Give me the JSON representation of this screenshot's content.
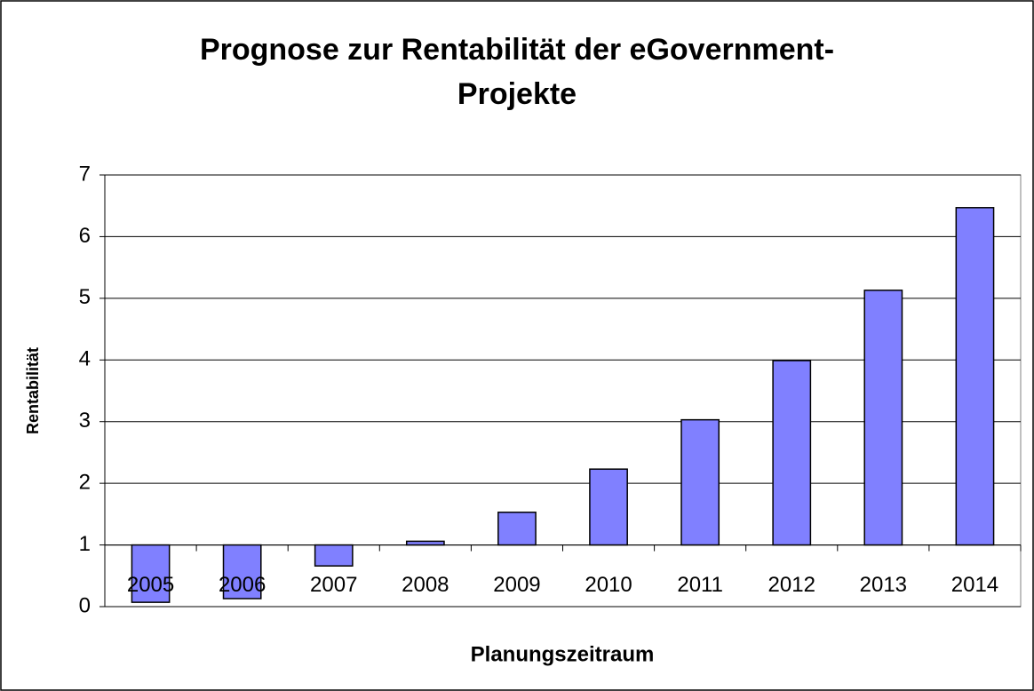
{
  "chart_data": {
    "type": "bar",
    "title": [
      "Prognose zur Rentabilität der eGovernment-",
      "Projekte"
    ],
    "x_label": "Planungszeitraum",
    "y_label": "Rentabilität",
    "categories": [
      "2005",
      "2006",
      "2007",
      "2008",
      "2009",
      "2010",
      "2011",
      "2012",
      "2013",
      "2014"
    ],
    "values": [
      0.07,
      0.13,
      0.66,
      1.06,
      1.53,
      2.23,
      3.03,
      3.99,
      5.13,
      6.47
    ],
    "color": "#8080ff",
    "ylim": [
      0,
      7
    ],
    "yticks": [
      0,
      1,
      2,
      3,
      4,
      5,
      6,
      7
    ],
    "x_axis_crosses": 1,
    "grid": true
  }
}
